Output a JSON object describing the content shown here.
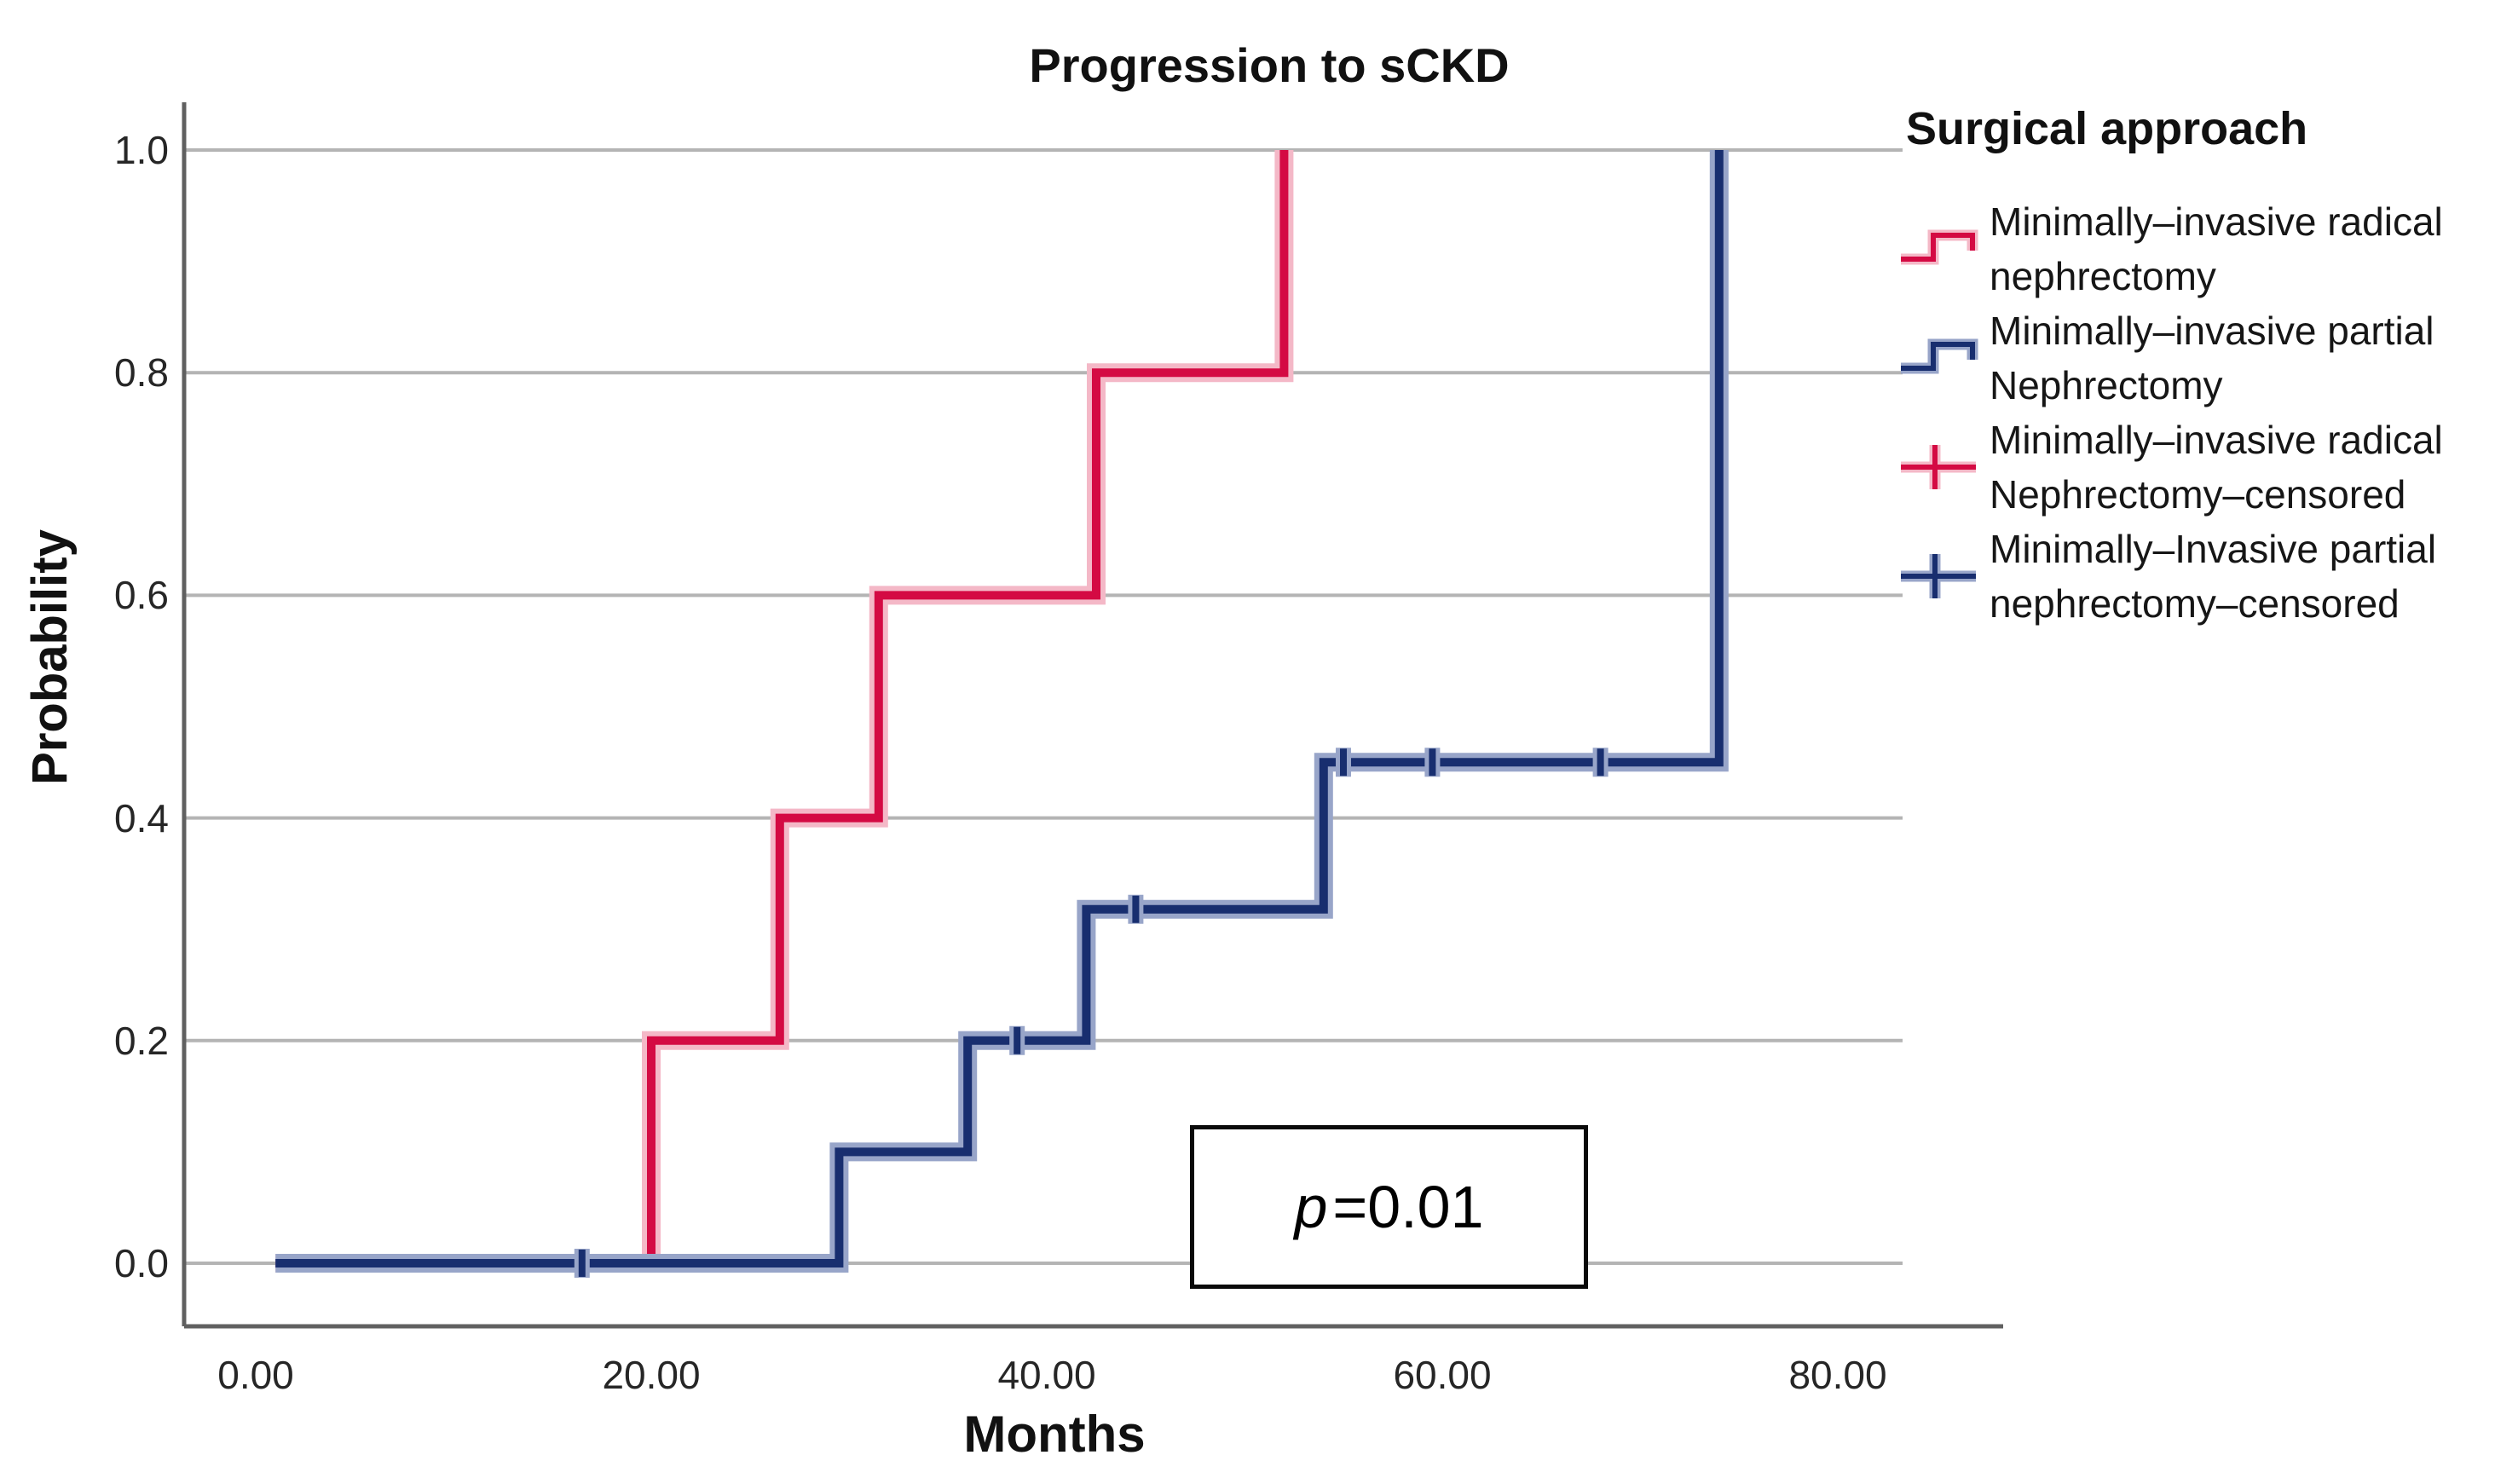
{
  "title": "Progression to sCKD",
  "axes": {
    "x": {
      "label": "Months",
      "ticks": [
        {
          "v": 0,
          "label": "0.00"
        },
        {
          "v": 20,
          "label": "20.00"
        },
        {
          "v": 40,
          "label": "40.00"
        },
        {
          "v": 60,
          "label": "60.00"
        },
        {
          "v": 80,
          "label": "80.00"
        }
      ]
    },
    "y": {
      "label": "Probability",
      "ticks": [
        {
          "v": 1.0,
          "label": "1.0"
        },
        {
          "v": 0.8,
          "label": "0.8"
        },
        {
          "v": 0.6,
          "label": "0.6"
        },
        {
          "v": 0.4,
          "label": "0.4"
        },
        {
          "v": 0.2,
          "label": "0.2"
        },
        {
          "v": 0.0,
          "label": "0.0"
        }
      ]
    }
  },
  "legend": {
    "title": "Surgical approach",
    "items": [
      {
        "lines": [
          "Minimally–invasive radical",
          "nephrectomy"
        ],
        "symbol": "step",
        "color": "#D40A43",
        "halo": "#F4B8C7"
      },
      {
        "lines": [
          "Minimally–invasive partial",
          "Nephrectomy"
        ],
        "symbol": "step",
        "color": "#182E6F",
        "halo": "#98A5C9"
      },
      {
        "lines": [
          "Minimally–invasive radical",
          "Nephrectomy–censored"
        ],
        "symbol": "plus",
        "color": "#D40A43",
        "halo": "#F4B8C7"
      },
      {
        "lines": [
          "Minimally–Invasive partial",
          "nephrectomy–censored"
        ],
        "symbol": "plus",
        "color": "#182E6F",
        "halo": "#98A5C9"
      }
    ]
  },
  "annotation": {
    "p_symbol": "p",
    "p_rest": "=0.01"
  },
  "colors": {
    "radical_red": "#D40A43",
    "partial_blue": "#182E6F",
    "gridline": "#B4B4B4",
    "axis": "#606060"
  },
  "chart_data": {
    "type": "line",
    "subtype": "kaplan-meier-step",
    "title": "Progression to sCKD",
    "xlabel": "Months",
    "ylabel": "Probability",
    "xlim": [
      0,
      83
    ],
    "ylim": [
      0,
      1.0
    ],
    "x_ticks": [
      0,
      20,
      40,
      60,
      80
    ],
    "y_ticks": [
      0.0,
      0.2,
      0.4,
      0.6,
      0.8,
      1.0
    ],
    "grid": "horizontal",
    "legend_position": "right",
    "p_value": "p=0.01",
    "series": [
      {
        "name": "Minimally–invasive radical nephrectomy",
        "color": "#D40A43",
        "halo": "#F4B8C7",
        "step_points": [
          [
            1,
            0
          ],
          [
            20,
            0
          ],
          [
            20,
            0.2
          ],
          [
            26.5,
            0.2
          ],
          [
            26.5,
            0.4
          ],
          [
            31.5,
            0.4
          ],
          [
            31.5,
            0.6
          ],
          [
            42.5,
            0.6
          ],
          [
            42.5,
            0.8
          ],
          [
            52,
            0.8
          ],
          [
            52,
            1.0
          ]
        ],
        "censored": []
      },
      {
        "name": "Minimally–invasive partial Nephrectomy",
        "color": "#182E6F",
        "halo": "#98A5C9",
        "step_points": [
          [
            1,
            0
          ],
          [
            29.5,
            0
          ],
          [
            29.5,
            0.1
          ],
          [
            36,
            0.1
          ],
          [
            36,
            0.2
          ],
          [
            42,
            0.2
          ],
          [
            42,
            0.318
          ],
          [
            54,
            0.318
          ],
          [
            54,
            0.45
          ],
          [
            74,
            0.45
          ],
          [
            74,
            1.0
          ]
        ],
        "censored": [
          [
            16.5,
            0
          ],
          [
            38.5,
            0.2
          ],
          [
            44.5,
            0.318
          ],
          [
            55,
            0.45
          ],
          [
            59.5,
            0.45
          ],
          [
            68,
            0.45
          ]
        ]
      }
    ]
  }
}
